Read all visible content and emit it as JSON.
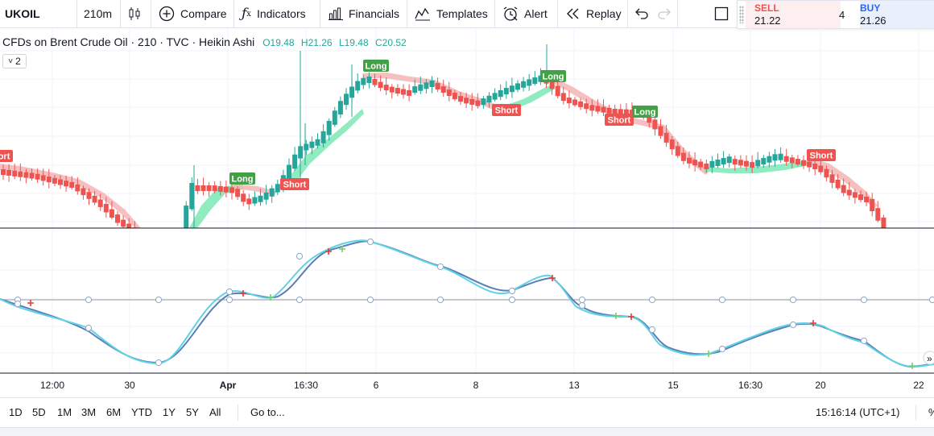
{
  "toolbar": {
    "symbol": "UKOIL",
    "interval": "210m",
    "compare": "Compare",
    "indicators": "Indicators",
    "financials": "Financials",
    "templates": "Templates",
    "alert": "Alert",
    "replay": "Replay"
  },
  "trade": {
    "sell_label": "SELL",
    "sell_price": "21.22",
    "spread": "4",
    "buy_label": "BUY",
    "buy_price": "21.26"
  },
  "legend": {
    "title": "CFDs on Brent Crude Oil · 210 · TVC · Heikin Ashi",
    "o": "O19.48",
    "h": "H21.26",
    "l": "L19.48",
    "c": "C20.52",
    "collapse": "2"
  },
  "colors": {
    "up": "#26a69a",
    "down": "#ef5350",
    "short_badge": "#ef5350",
    "long_badge": "#43a047",
    "ribbon_up": "#7ee8b5",
    "ribbon_down": "#f5b5b5",
    "osc_fast": "#5fd3e5",
    "osc_slow": "#5b7fb5"
  },
  "bottom": {
    "ranges": [
      "1D",
      "5D",
      "1M",
      "3M",
      "6M",
      "YTD",
      "1Y",
      "5Y",
      "All"
    ],
    "goto": "Go to...",
    "clock": "15:16:14 (UTC+1)",
    "pct": "%"
  },
  "chart_data": {
    "type": "candlestick",
    "x_ticks": [
      "12:00",
      "30",
      "Apr",
      "16:30",
      "6",
      "8",
      "13",
      "15",
      "16:30",
      "20",
      "22"
    ],
    "signals": [
      {
        "label": "Short",
        "type": "short"
      },
      {
        "label": "Long",
        "type": "long"
      },
      {
        "label": "Short",
        "type": "short"
      },
      {
        "label": "Long",
        "type": "long"
      },
      {
        "label": "Short",
        "type": "short"
      },
      {
        "label": "Long",
        "type": "long"
      },
      {
        "label": "Short",
        "type": "short"
      },
      {
        "label": "Long",
        "type": "long"
      },
      {
        "label": "Short",
        "type": "short"
      }
    ],
    "oscillator_zero_line": true
  }
}
